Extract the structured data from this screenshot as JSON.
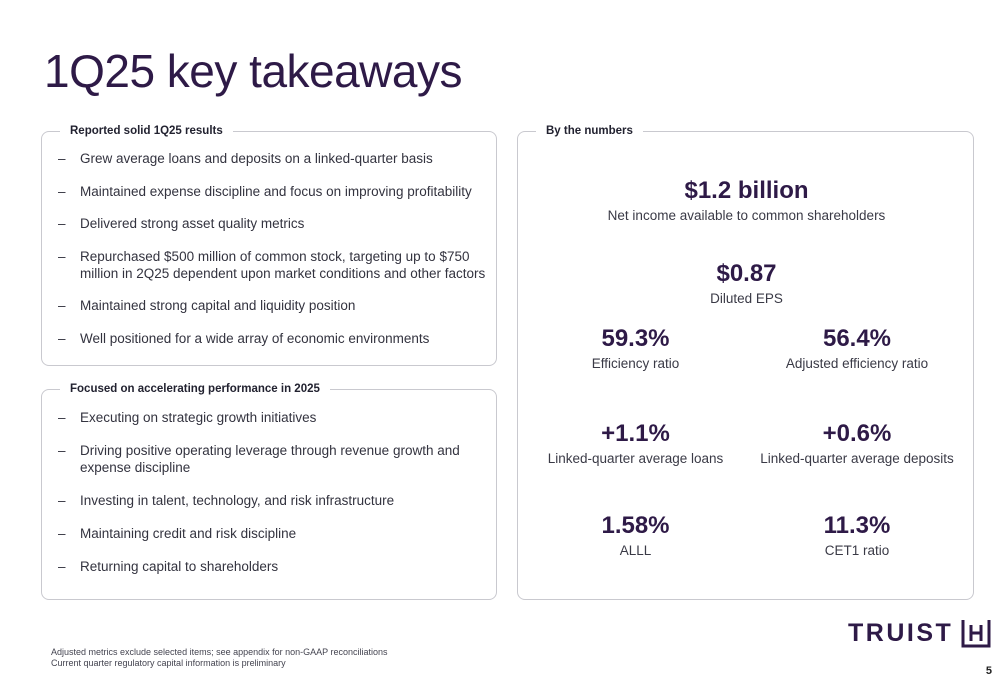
{
  "slide": {
    "title": "1Q25 key takeaways",
    "page_number": "5"
  },
  "results_panel": {
    "heading": "Reported solid 1Q25 results",
    "items": [
      "Grew average loans and deposits on a linked-quarter basis",
      "Maintained expense discipline and focus on improving profitability",
      "Delivered strong asset quality metrics",
      "Repurchased $500 million of common stock, targeting up to $750 million in 2Q25 dependent upon market conditions and other factors",
      "Maintained strong capital and liquidity position",
      "Well positioned for a wide array of economic environments"
    ]
  },
  "focus_panel": {
    "heading": "Focused on accelerating performance in 2025",
    "items": [
      "Executing on strategic growth initiatives",
      "Driving positive operating leverage through revenue growth and expense discipline",
      "Investing in talent, technology, and risk infrastructure",
      "Maintaining credit and risk discipline",
      "Returning capital to shareholders"
    ]
  },
  "numbers_panel": {
    "heading": "By the numbers",
    "net_income": {
      "value": "$1.2 billion",
      "label": "Net income available to common shareholders"
    },
    "eps": {
      "value": "$0.87",
      "label": "Diluted EPS"
    },
    "efficiency": {
      "value": "59.3%",
      "label": "Efficiency ratio"
    },
    "adj_efficiency": {
      "value": "56.4%",
      "label": "Adjusted efficiency ratio"
    },
    "loans": {
      "value": "+1.1%",
      "label": "Linked-quarter average loans"
    },
    "deposits": {
      "value": "+0.6%",
      "label": "Linked-quarter average deposits"
    },
    "alll": {
      "value": "1.58%",
      "label": "ALLL"
    },
    "cet1": {
      "value": "11.3%",
      "label": "CET1 ratio"
    }
  },
  "footnotes": {
    "line1": "Adjusted metrics exclude selected items; see appendix for non-GAAP reconciliations",
    "line2": "Current quarter regulatory capital information is preliminary"
  },
  "logo": {
    "text": "TRUIST",
    "icon": "truist-h-mark-icon"
  },
  "colors": {
    "brand_purple": "#2e1a47",
    "panel_border": "#c9c9cf"
  }
}
